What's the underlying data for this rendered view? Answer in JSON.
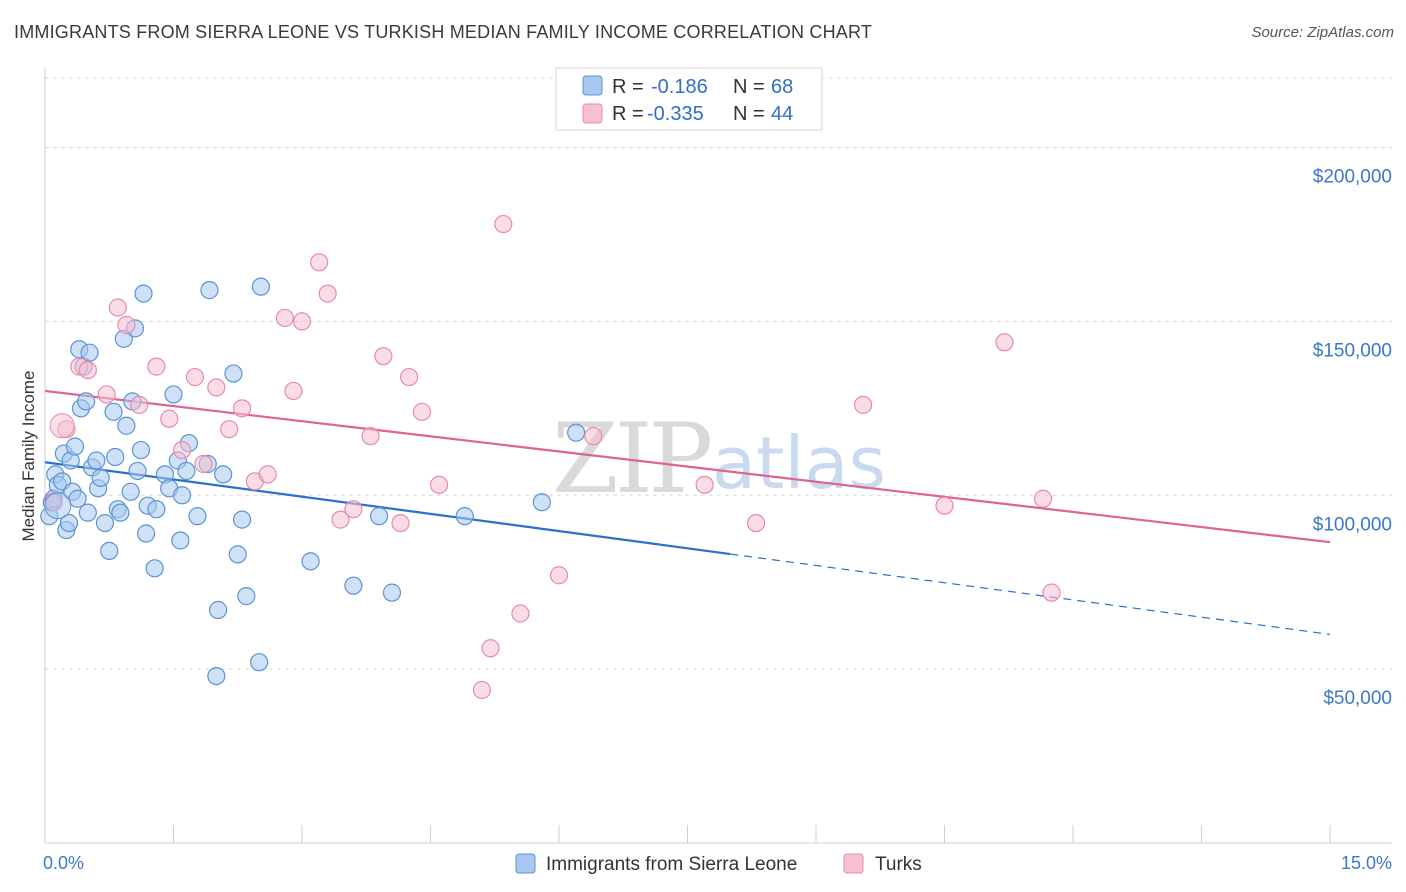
{
  "title": "IMMIGRANTS FROM SIERRA LEONE VS TURKISH MEDIAN FAMILY INCOME CORRELATION CHART",
  "source": "Source: ZipAtlas.com",
  "watermark": {
    "zip": "ZIP",
    "atlas": "atlas"
  },
  "colors": {
    "blue_fill": "#a8c8ef",
    "blue_stroke": "#5b93d6",
    "blue_line": "#2a6fd1",
    "pink_fill": "#f6c0d2",
    "pink_stroke": "#e98aab",
    "pink_line": "#e0628f",
    "axis_label": "#3a78c9",
    "grid": "#d8d8d8"
  },
  "legend": {
    "rows": [
      {
        "r_label": "R =",
        "r_value": "-0.186",
        "n_label": "N =",
        "n_value": "68"
      },
      {
        "r_label": "R =",
        "r_value": "-0.335",
        "n_label": "N =",
        "n_value": "44"
      }
    ]
  },
  "bottom_legend": [
    "Immigrants from Sierra Leone",
    "Turks"
  ],
  "chart_data": {
    "type": "scatter",
    "xlabel": "",
    "ylabel": "Median Family Income",
    "xlim": [
      0,
      15
    ],
    "ylim": [
      0,
      220000
    ],
    "x_tick_labels": [
      "0.0%",
      "15.0%"
    ],
    "y_ticks": [
      50000,
      100000,
      150000,
      200000
    ],
    "y_tick_labels": [
      "$50,000",
      "$100,000",
      "$150,000",
      "$200,000"
    ],
    "series": [
      {
        "name": "Immigrants from Sierra Leone",
        "color": "blue",
        "trend": {
          "x": [
            0,
            8.0,
            15
          ],
          "y": [
            109500,
            83000,
            60000
          ],
          "solid_until": 8.0
        },
        "points": [
          [
            0.05,
            94000
          ],
          [
            0.08,
            98000
          ],
          [
            0.1,
            99000
          ],
          [
            0.12,
            106000
          ],
          [
            0.15,
            103000
          ],
          [
            0.2,
            104000
          ],
          [
            0.22,
            112000
          ],
          [
            0.25,
            90000
          ],
          [
            0.28,
            92000
          ],
          [
            0.3,
            110000
          ],
          [
            0.32,
            101000
          ],
          [
            0.35,
            114000
          ],
          [
            0.38,
            99000
          ],
          [
            0.4,
            142000
          ],
          [
            0.42,
            125000
          ],
          [
            0.45,
            137000
          ],
          [
            0.5,
            95000
          ],
          [
            0.52,
            141000
          ],
          [
            0.55,
            108000
          ],
          [
            0.6,
            110000
          ],
          [
            0.62,
            102000
          ],
          [
            0.65,
            105000
          ],
          [
            0.7,
            92000
          ],
          [
            0.75,
            84000
          ],
          [
            0.8,
            124000
          ],
          [
            0.82,
            111000
          ],
          [
            0.85,
            96000
          ],
          [
            0.88,
            95000
          ],
          [
            0.92,
            145000
          ],
          [
            0.95,
            120000
          ],
          [
            1.0,
            101000
          ],
          [
            1.02,
            127000
          ],
          [
            1.05,
            148000
          ],
          [
            1.08,
            107000
          ],
          [
            1.12,
            113000
          ],
          [
            1.15,
            158000
          ],
          [
            1.18,
            89000
          ],
          [
            1.2,
            97000
          ],
          [
            1.28,
            79000
          ],
          [
            1.3,
            96000
          ],
          [
            1.4,
            106000
          ],
          [
            1.45,
            102000
          ],
          [
            1.5,
            129000
          ],
          [
            1.55,
            110000
          ],
          [
            1.58,
            87000
          ],
          [
            1.6,
            100000
          ],
          [
            1.65,
            107000
          ],
          [
            1.68,
            115000
          ],
          [
            1.78,
            94000
          ],
          [
            1.9,
            109000
          ],
          [
            1.92,
            159000
          ],
          [
            2.0,
            48000
          ],
          [
            2.02,
            67000
          ],
          [
            2.08,
            106000
          ],
          [
            2.2,
            135000
          ],
          [
            2.25,
            83000
          ],
          [
            2.3,
            93000
          ],
          [
            2.35,
            71000
          ],
          [
            2.5,
            52000
          ],
          [
            2.52,
            160000
          ],
          [
            3.1,
            81000
          ],
          [
            3.6,
            74000
          ],
          [
            3.9,
            94000
          ],
          [
            4.05,
            72000
          ],
          [
            4.9,
            94000
          ],
          [
            5.8,
            98000
          ],
          [
            6.2,
            118000
          ],
          [
            0.48,
            127000
          ]
        ]
      },
      {
        "name": "Turks",
        "color": "pink",
        "trend": {
          "x": [
            0,
            15
          ],
          "y": [
            130000,
            86500
          ],
          "solid_until": 15
        },
        "points": [
          [
            0.1,
            98000
          ],
          [
            0.25,
            119000
          ],
          [
            0.4,
            137000
          ],
          [
            0.5,
            136000
          ],
          [
            0.72,
            129000
          ],
          [
            0.85,
            154000
          ],
          [
            0.95,
            149000
          ],
          [
            1.1,
            126000
          ],
          [
            1.3,
            137000
          ],
          [
            1.45,
            122000
          ],
          [
            1.6,
            113000
          ],
          [
            1.75,
            134000
          ],
          [
            1.85,
            109000
          ],
          [
            2.0,
            131000
          ],
          [
            2.15,
            119000
          ],
          [
            2.3,
            125000
          ],
          [
            2.45,
            104000
          ],
          [
            2.6,
            106000
          ],
          [
            2.8,
            151000
          ],
          [
            2.9,
            130000
          ],
          [
            3.0,
            150000
          ],
          [
            3.2,
            167000
          ],
          [
            3.3,
            158000
          ],
          [
            3.45,
            93000
          ],
          [
            3.6,
            96000
          ],
          [
            3.8,
            117000
          ],
          [
            3.95,
            140000
          ],
          [
            4.15,
            92000
          ],
          [
            4.25,
            134000
          ],
          [
            4.4,
            124000
          ],
          [
            4.6,
            103000
          ],
          [
            5.1,
            44000
          ],
          [
            5.2,
            56000
          ],
          [
            5.35,
            178000
          ],
          [
            5.55,
            66000
          ],
          [
            6.0,
            77000
          ],
          [
            6.4,
            117000
          ],
          [
            7.7,
            103000
          ],
          [
            8.3,
            92000
          ],
          [
            9.55,
            126000
          ],
          [
            10.5,
            97000
          ],
          [
            11.2,
            144000
          ],
          [
            11.65,
            99000
          ],
          [
            11.75,
            72000
          ]
        ]
      }
    ]
  }
}
